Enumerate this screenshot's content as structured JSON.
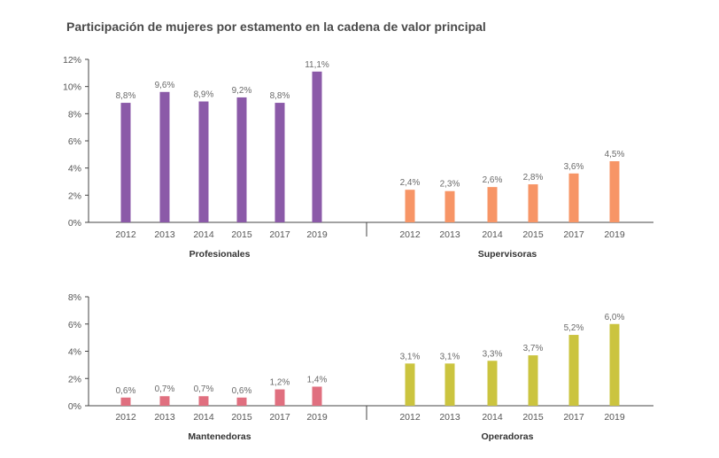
{
  "title": "Participación de mujeres por estamento en la cadena de valor principal",
  "chart_data": [
    {
      "type": "bar",
      "ylim": [
        0,
        12
      ],
      "yticks": [
        "0%",
        "2%",
        "4%",
        "6%",
        "8%",
        "10%",
        "12%"
      ],
      "groups": [
        {
          "name": "Profesionales",
          "color": "#8b5aa8",
          "categories": [
            "2012",
            "2013",
            "2014",
            "2015",
            "2017",
            "2019"
          ],
          "values": [
            8.8,
            9.6,
            8.9,
            9.2,
            8.8,
            11.1
          ],
          "labels": [
            "8,8%",
            "9,6%",
            "8,9%",
            "9,2%",
            "8,8%",
            "11,1%"
          ]
        },
        {
          "name": "Supervisoras",
          "color": "#f79566",
          "categories": [
            "2012",
            "2013",
            "2014",
            "2015",
            "2017",
            "2019"
          ],
          "values": [
            2.4,
            2.3,
            2.6,
            2.8,
            3.6,
            4.5
          ],
          "labels": [
            "2,4%",
            "2,3%",
            "2,6%",
            "2,8%",
            "3,6%",
            "4,5%"
          ]
        }
      ]
    },
    {
      "type": "bar",
      "ylim": [
        0,
        8
      ],
      "yticks": [
        "0%",
        "2%",
        "4%",
        "6%",
        "8%"
      ],
      "groups": [
        {
          "name": "Mantenedoras",
          "color": "#e06f7f",
          "categories": [
            "2012",
            "2013",
            "2014",
            "2015",
            "2017",
            "2019"
          ],
          "values": [
            0.6,
            0.7,
            0.7,
            0.6,
            1.2,
            1.4
          ],
          "labels": [
            "0,6%",
            "0,7%",
            "0,7%",
            "0,6%",
            "1,2%",
            "1,4%"
          ]
        },
        {
          "name": "Operadoras",
          "color": "#cbc43f",
          "categories": [
            "2012",
            "2013",
            "2014",
            "2015",
            "2017",
            "2019"
          ],
          "values": [
            3.1,
            3.1,
            3.3,
            3.7,
            5.2,
            6.0
          ],
          "labels": [
            "3,1%",
            "3,1%",
            "3,3%",
            "3,7%",
            "5,2%",
            "6,0%"
          ]
        }
      ]
    }
  ]
}
